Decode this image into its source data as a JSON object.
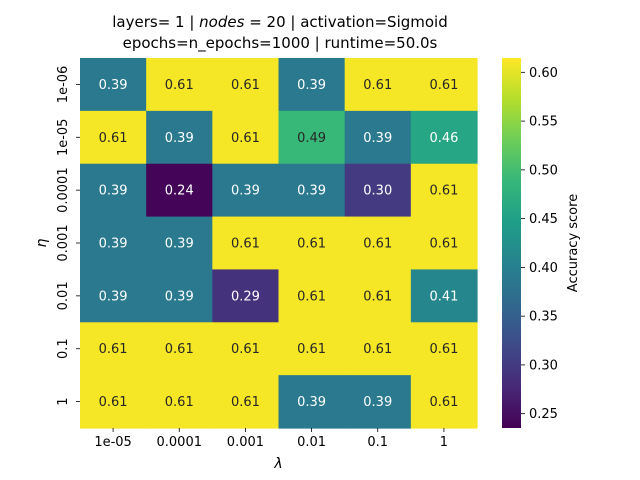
{
  "chart_data": {
    "type": "heatmap",
    "title_line1": {
      "prefix": "layers= 1 | ",
      "nodes_word": "nodes",
      "suffix": " = 20 | activation=Sigmoid"
    },
    "title_line2": "epochs=n_epochs=1000 | runtime=50.0s",
    "xlabel": "λ",
    "ylabel": "η",
    "x_categories": [
      "1e-05",
      "0.0001",
      "0.001",
      "0.01",
      "0.1",
      "1"
    ],
    "y_categories": [
      "1e-06",
      "1e-05",
      "0.0001",
      "0.001",
      "0.01",
      "0.1",
      "1"
    ],
    "values": [
      [
        0.39,
        0.61,
        0.61,
        0.39,
        0.61,
        0.61
      ],
      [
        0.61,
        0.39,
        0.61,
        0.49,
        0.39,
        0.46
      ],
      [
        0.39,
        0.24,
        0.39,
        0.39,
        0.3,
        0.61
      ],
      [
        0.39,
        0.39,
        0.61,
        0.61,
        0.61,
        0.61
      ],
      [
        0.39,
        0.39,
        0.29,
        0.61,
        0.61,
        0.41
      ],
      [
        0.61,
        0.61,
        0.61,
        0.61,
        0.61,
        0.61
      ],
      [
        0.61,
        0.61,
        0.61,
        0.39,
        0.39,
        0.61
      ]
    ],
    "value_labels": [
      [
        "0.39",
        "0.61",
        "0.61",
        "0.39",
        "0.61",
        "0.61"
      ],
      [
        "0.61",
        "0.39",
        "0.61",
        "0.49",
        "0.39",
        "0.46"
      ],
      [
        "0.39",
        "0.24",
        "0.39",
        "0.39",
        "0.30",
        "0.61"
      ],
      [
        "0.39",
        "0.39",
        "0.61",
        "0.61",
        "0.61",
        "0.61"
      ],
      [
        "0.39",
        "0.39",
        "0.29",
        "0.61",
        "0.61",
        "0.41"
      ],
      [
        "0.61",
        "0.61",
        "0.61",
        "0.61",
        "0.61",
        "0.61"
      ],
      [
        "0.61",
        "0.61",
        "0.61",
        "0.39",
        "0.39",
        "0.61"
      ]
    ],
    "colorbar": {
      "label": "Accuracy score",
      "vmin": 0.2353,
      "vmax": 0.6147,
      "ticks": [
        0.25,
        0.3,
        0.35,
        0.4,
        0.45,
        0.5,
        0.55,
        0.6
      ],
      "tick_labels": [
        "0.25",
        "0.30",
        "0.35",
        "0.40",
        "0.45",
        "0.50",
        "0.55",
        "0.60"
      ]
    },
    "colormap": "viridis",
    "grid": false
  }
}
